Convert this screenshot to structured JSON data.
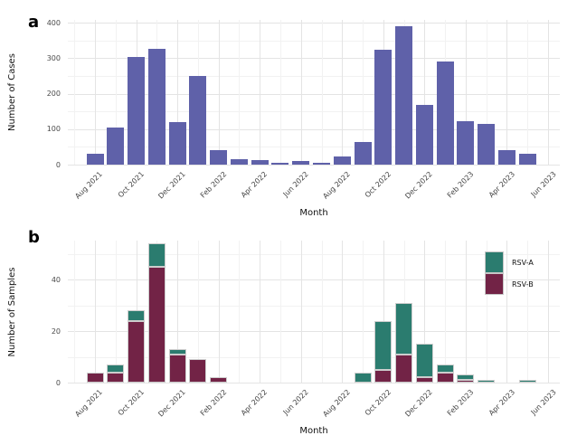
{
  "figure": {
    "background": "#ffffff",
    "tick_text_color": "#4a4a4a",
    "axis_title_color": "#111111",
    "grid_major_color": "#e4e4e4",
    "grid_minor_color": "#f2f2f2"
  },
  "chart_data": [
    {
      "type": "bar",
      "panel_label": "a",
      "xlabel": "Month",
      "ylabel": "Number of Cases",
      "categories": [
        "Aug 2021",
        "Sep 2021",
        "Oct 2021",
        "Nov 2021",
        "Dec 2021",
        "Jan 2022",
        "Feb 2022",
        "Mar 2022",
        "Apr 2022",
        "May 2022",
        "Jun 2022",
        "Jul 2022",
        "Aug 2022",
        "Sep 2022",
        "Oct 2022",
        "Nov 2022",
        "Dec 2022",
        "Jan 2023",
        "Feb 2023",
        "Mar 2023",
        "Apr 2023",
        "May 2023",
        "Jun 2023"
      ],
      "xtick_labels": [
        "Aug 2021",
        "Oct 2021",
        "Dec 2021",
        "Feb 2022",
        "Apr 2022",
        "Jun 2022",
        "Aug 2022",
        "Oct 2022",
        "Dec 2022",
        "Feb 2023",
        "Apr 2023",
        "Jun 2023"
      ],
      "series": [
        {
          "name": "Cases",
          "color": "#5f61a9",
          "values": [
            30,
            105,
            304,
            326,
            120,
            250,
            40,
            16,
            14,
            5,
            10,
            6,
            24,
            63,
            325,
            390,
            168,
            290,
            123,
            115,
            42,
            30,
            0
          ]
        }
      ],
      "yticks": [
        0,
        100,
        200,
        300,
        400
      ],
      "yticks_minor": [
        50,
        150,
        250,
        350
      ],
      "ylim": [
        0,
        408
      ],
      "grid": true,
      "legend": null
    },
    {
      "type": "stacked-bar",
      "panel_label": "b",
      "xlabel": "Month",
      "ylabel": "Number of Samples",
      "categories": [
        "Aug 2021",
        "Sep 2021",
        "Oct 2021",
        "Nov 2021",
        "Dec 2021",
        "Jan 2022",
        "Feb 2022",
        "Mar 2022",
        "Apr 2022",
        "May 2022",
        "Jun 2022",
        "Jul 2022",
        "Aug 2022",
        "Sep 2022",
        "Oct 2022",
        "Nov 2022",
        "Dec 2022",
        "Jan 2023",
        "Feb 2023",
        "Mar 2023",
        "Apr 2023",
        "May 2023",
        "Jun 2023"
      ],
      "xtick_labels": [
        "Aug 2021",
        "Oct 2021",
        "Dec 2021",
        "Feb 2022",
        "Apr 2022",
        "Jun 2022",
        "Aug 2022",
        "Oct 2022",
        "Dec 2022",
        "Feb 2023",
        "Apr 2023",
        "Jun 2023"
      ],
      "series": [
        {
          "name": "RSV-B",
          "color": "#722346",
          "values": [
            4,
            4,
            24,
            45,
            11,
            9,
            2,
            0,
            0,
            0,
            0,
            0,
            0,
            0,
            5,
            11,
            2,
            4,
            1,
            0,
            0,
            0,
            0
          ]
        },
        {
          "name": "RSV-A",
          "color": "#2b7c6f",
          "values": [
            0,
            3,
            4,
            9,
            2,
            0,
            0,
            0,
            0,
            0,
            0,
            0,
            0,
            4,
            19,
            20,
            13,
            3,
            2,
            1,
            0,
            1,
            0
          ]
        }
      ],
      "yticks": [
        0,
        20,
        40
      ],
      "yticks_minor": [
        10,
        30,
        50
      ],
      "ylim": [
        0,
        55.2
      ],
      "grid": true,
      "legend": {
        "position": "top-right",
        "items": [
          {
            "label": "RSV-A",
            "color": "#2b7c6f"
          },
          {
            "label": "RSV-B",
            "color": "#722346"
          }
        ]
      }
    }
  ]
}
